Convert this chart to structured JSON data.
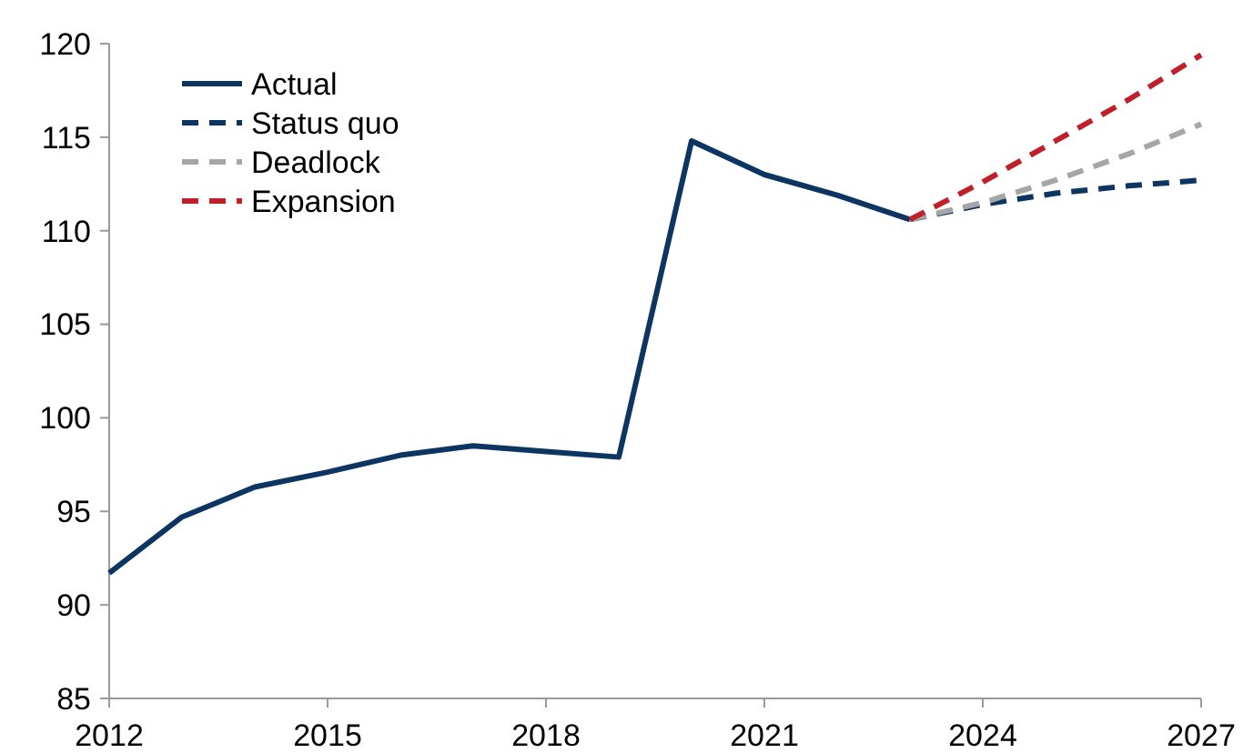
{
  "chart_data": {
    "type": "line",
    "x": [
      2012,
      2013,
      2014,
      2015,
      2016,
      2017,
      2018,
      2019,
      2020,
      2021,
      2022,
      2023
    ],
    "series": [
      {
        "name": "Actual",
        "color": "#0d3561",
        "line_style": "solid",
        "values": [
          91.7,
          94.7,
          96.3,
          97.1,
          98.0,
          98.5,
          98.2,
          97.9,
          114.8,
          113.0,
          111.9,
          110.6
        ]
      },
      {
        "name": "Status quo",
        "color": "#0d3561",
        "line_style": "dashed",
        "x": [
          2023,
          2024,
          2025,
          2026,
          2027
        ],
        "values": [
          110.6,
          111.4,
          112.0,
          112.4,
          112.7
        ]
      },
      {
        "name": "Deadlock",
        "color": "#a6a6a6",
        "line_style": "dashed",
        "x": [
          2023,
          2024,
          2025,
          2026,
          2027
        ],
        "values": [
          110.6,
          111.5,
          112.7,
          114.1,
          115.7
        ]
      },
      {
        "name": "Expansion",
        "color": "#c0202a",
        "line_style": "dashed",
        "x": [
          2023,
          2024,
          2025,
          2026,
          2027
        ],
        "values": [
          110.6,
          112.6,
          114.8,
          117.0,
          119.4
        ]
      }
    ],
    "xlim": [
      2012,
      2027
    ],
    "xticks": [
      2012,
      2015,
      2018,
      2021,
      2024,
      2027
    ],
    "ylim": [
      85,
      120
    ],
    "yticks": [
      85,
      90,
      95,
      100,
      105,
      110,
      115,
      120
    ],
    "grid": false,
    "legend": "top left",
    "marker": "none"
  }
}
